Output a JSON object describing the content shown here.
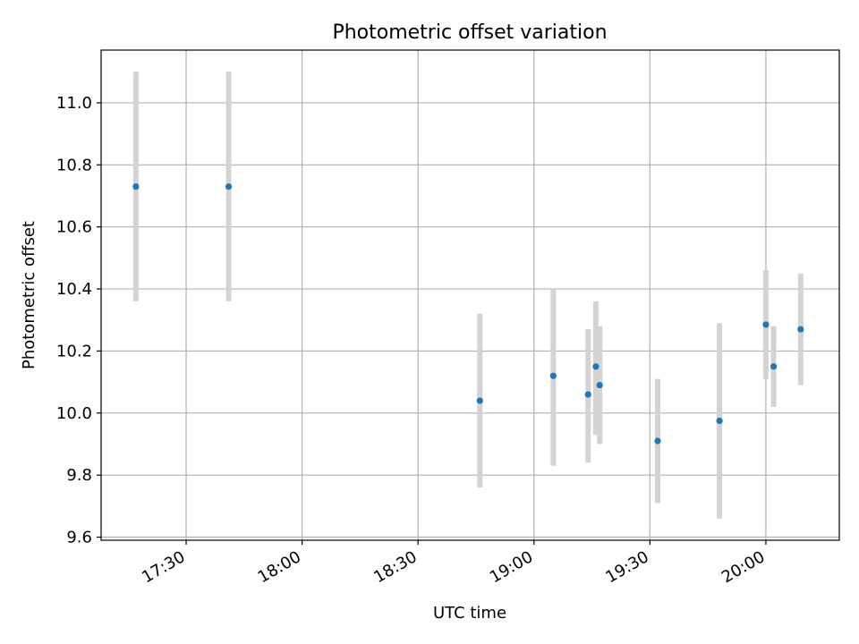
{
  "chart_data": {
    "type": "scatter",
    "title": "Photometric offset variation",
    "xlabel": "UTC time",
    "ylabel": "Photometric offset",
    "x_axis": {
      "kind": "time",
      "range": [
        "17:08",
        "20:19"
      ],
      "ticks": [
        "17:30",
        "18:00",
        "18:30",
        "19:00",
        "19:30",
        "20:00"
      ]
    },
    "y_axis": {
      "range": [
        9.59,
        11.17
      ],
      "ticks": [
        "9.6",
        "9.8",
        "10.0",
        "10.2",
        "10.4",
        "10.6",
        "10.8",
        "11.0"
      ]
    },
    "grid": true,
    "legend": "none",
    "points": [
      {
        "x": "17:17",
        "y": 10.73,
        "err_low": 10.36,
        "err_high": 11.1
      },
      {
        "x": "17:41",
        "y": 10.73,
        "err_low": 10.36,
        "err_high": 11.1
      },
      {
        "x": "18:46",
        "y": 10.04,
        "err_low": 9.76,
        "err_high": 10.32
      },
      {
        "x": "19:05",
        "y": 10.12,
        "err_low": 9.83,
        "err_high": 10.4
      },
      {
        "x": "19:14",
        "y": 10.06,
        "err_low": 9.84,
        "err_high": 10.27
      },
      {
        "x": "19:16",
        "y": 10.15,
        "err_low": 9.93,
        "err_high": 10.36
      },
      {
        "x": "19:17",
        "y": 10.09,
        "err_low": 9.9,
        "err_high": 10.28
      },
      {
        "x": "19:32",
        "y": 9.91,
        "err_low": 9.71,
        "err_high": 10.11
      },
      {
        "x": "19:48",
        "y": 9.975,
        "err_low": 9.66,
        "err_high": 10.29
      },
      {
        "x": "20:00",
        "y": 10.285,
        "err_low": 10.11,
        "err_high": 10.46
      },
      {
        "x": "20:02",
        "y": 10.15,
        "err_low": 10.02,
        "err_high": 10.28
      },
      {
        "x": "20:09",
        "y": 10.27,
        "err_low": 10.09,
        "err_high": 10.45
      }
    ],
    "colors": {
      "marker": "#1f77b4",
      "errorbar": "#d3d3d3",
      "grid": "#b0b0b0"
    }
  }
}
